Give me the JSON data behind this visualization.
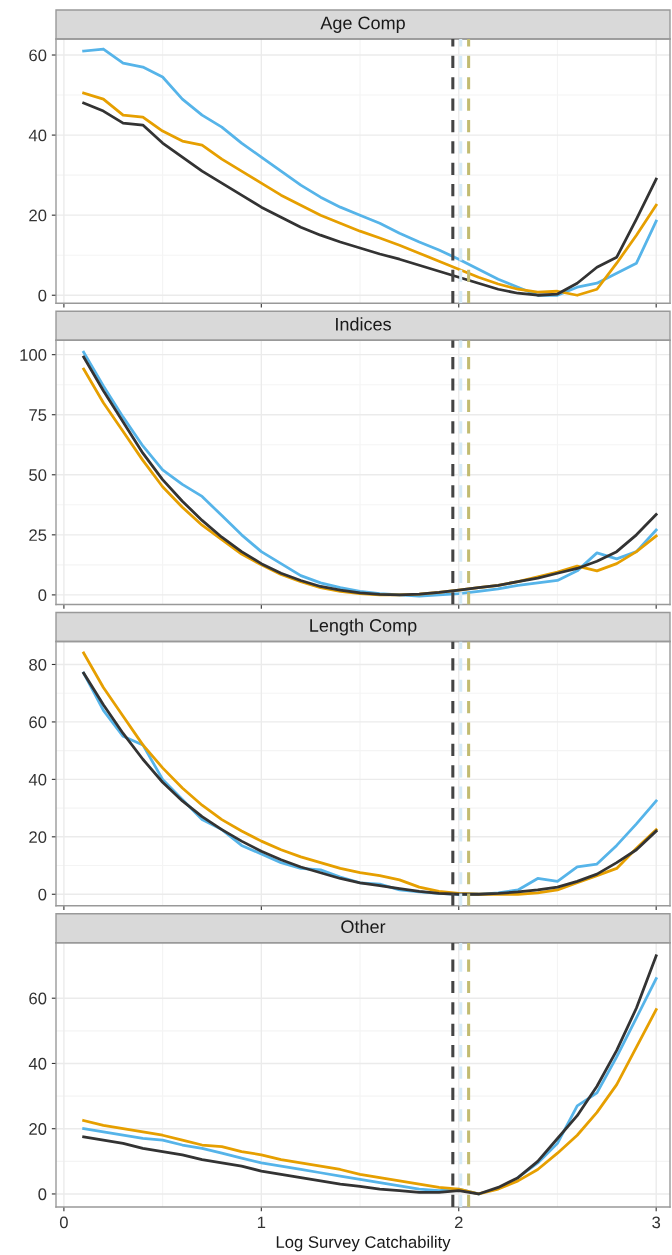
{
  "chart_data": [
    {
      "type": "line",
      "title": "Age Comp",
      "x": [
        0.1,
        0.2,
        0.3,
        0.4,
        0.5,
        0.6,
        0.7,
        0.8,
        0.9,
        1.0,
        1.1,
        1.2,
        1.3,
        1.4,
        1.5,
        1.6,
        1.7,
        1.8,
        1.9,
        2.0,
        2.1,
        2.2,
        2.3,
        2.4,
        2.5,
        2.6,
        2.7,
        2.8,
        2.9,
        3.0
      ],
      "series": [
        {
          "color": "#56b4e9",
          "values": [
            61,
            61.5,
            58,
            57,
            54.5,
            49,
            45,
            42,
            38,
            34.5,
            31,
            27.5,
            24.5,
            22,
            20,
            18,
            15.5,
            13.3,
            11.3,
            9,
            6.5,
            4,
            2,
            0,
            0,
            2,
            3,
            5.5,
            8,
            18.5
          ]
        },
        {
          "color": "#e69f00",
          "values": [
            50.5,
            49,
            45,
            44.5,
            41,
            38.5,
            37.5,
            34,
            31,
            28,
            25,
            22.5,
            20,
            18,
            16,
            14.3,
            12.5,
            10.5,
            8.5,
            6.5,
            4.5,
            2.8,
            1.5,
            0.8,
            1,
            0,
            1.5,
            8,
            15,
            22.5
          ]
        },
        {
          "color": "#333333",
          "values": [
            48,
            46,
            43,
            42.5,
            38,
            34.5,
            31,
            28,
            25,
            22,
            19.5,
            17,
            15,
            13.3,
            11.8,
            10.3,
            9,
            7.5,
            6,
            4.5,
            3,
            1.5,
            0.5,
            0,
            0.3,
            3,
            7,
            9.5,
            19,
            29
          ]
        }
      ],
      "xlim": [
        -0.04,
        3.07
      ],
      "xticks": [
        0,
        1,
        2,
        3
      ],
      "ylim": [
        -2,
        64
      ],
      "yticks": [
        0,
        20,
        40,
        60
      ],
      "tick_labels": "y",
      "grid": true,
      "line_style": "solid",
      "ref_lines": [
        {
          "axis": "x",
          "value": 1.97,
          "color": "#444444",
          "line_style": "dashed"
        },
        {
          "axis": "x",
          "value": 2.01,
          "color": "#d6eaf6",
          "line_style": "dashed"
        },
        {
          "axis": "x",
          "value": 2.05,
          "color": "#c2bb72",
          "line_style": "dashed"
        }
      ]
    },
    {
      "type": "line",
      "title": "Indices",
      "x": [
        0.1,
        0.2,
        0.3,
        0.4,
        0.5,
        0.6,
        0.7,
        0.8,
        0.9,
        1.0,
        1.1,
        1.2,
        1.3,
        1.4,
        1.5,
        1.6,
        1.7,
        1.8,
        1.9,
        2.0,
        2.1,
        2.2,
        2.3,
        2.4,
        2.5,
        2.6,
        2.7,
        2.8,
        2.9,
        3.0
      ],
      "series": [
        {
          "color": "#56b4e9",
          "values": [
            101,
            87,
            74,
            62,
            52,
            46,
            41,
            33,
            25,
            18,
            13,
            8,
            5,
            3,
            1.5,
            0.5,
            0,
            -0.5,
            0,
            0.5,
            1.5,
            2.5,
            4,
            5,
            6,
            10,
            17.5,
            15,
            18,
            27
          ]
        },
        {
          "color": "#e69f00",
          "values": [
            94,
            80,
            68,
            56,
            45,
            36.5,
            29,
            23,
            17,
            12.5,
            8.5,
            5.5,
            3,
            1.5,
            0.5,
            0,
            0,
            0.3,
            1,
            2,
            3,
            4,
            5.5,
            7.5,
            9.5,
            12,
            10,
            13,
            18,
            24.5
          ]
        },
        {
          "color": "#333333",
          "values": [
            99,
            85,
            72,
            59,
            48,
            39,
            31,
            24,
            18,
            13,
            9,
            6,
            3.5,
            2,
            0.8,
            0.2,
            0,
            0.3,
            1,
            2,
            3,
            4,
            5.5,
            7,
            9,
            11,
            14,
            18,
            25,
            33.5
          ]
        }
      ],
      "xlim": [
        -0.04,
        3.07
      ],
      "xticks": [
        0,
        1,
        2,
        3
      ],
      "ylim": [
        -4,
        106
      ],
      "yticks": [
        0,
        25,
        50,
        75,
        100
      ],
      "tick_labels": "y",
      "grid": true,
      "line_style": "solid",
      "ref_lines": [
        {
          "axis": "x",
          "value": 1.97,
          "color": "#444444",
          "line_style": "dashed"
        },
        {
          "axis": "x",
          "value": 2.01,
          "color": "#d6eaf6",
          "line_style": "dashed"
        },
        {
          "axis": "x",
          "value": 2.05,
          "color": "#c2bb72",
          "line_style": "dashed"
        }
      ]
    },
    {
      "type": "line",
      "title": "Length Comp",
      "x": [
        0.1,
        0.2,
        0.3,
        0.4,
        0.5,
        0.6,
        0.7,
        0.8,
        0.9,
        1.0,
        1.1,
        1.2,
        1.3,
        1.4,
        1.5,
        1.6,
        1.7,
        1.8,
        1.9,
        2.0,
        2.1,
        2.2,
        2.3,
        2.4,
        2.5,
        2.6,
        2.7,
        2.8,
        2.9,
        3.0
      ],
      "series": [
        {
          "color": "#56b4e9",
          "values": [
            77,
            64,
            55,
            52,
            40,
            33,
            26,
            22.5,
            17,
            14,
            11,
            9,
            8.5,
            6,
            4,
            3.5,
            1.5,
            0.8,
            0.3,
            0,
            0,
            0.5,
            1.5,
            5.5,
            4.5,
            9.5,
            10.5,
            17,
            24.5,
            32.5
          ]
        },
        {
          "color": "#e69f00",
          "values": [
            84,
            72,
            62,
            52,
            44,
            37,
            31,
            26,
            22,
            18.5,
            15.5,
            13,
            11,
            9,
            7.5,
            6.5,
            5,
            2.5,
            1,
            0.3,
            0,
            0,
            0,
            0.5,
            1.5,
            4,
            6.5,
            9,
            16,
            22.5
          ]
        },
        {
          "color": "#333333",
          "values": [
            77,
            66,
            56,
            47,
            39,
            32.5,
            27,
            22.5,
            18.5,
            15,
            12,
            9.5,
            7.5,
            5.5,
            4,
            3,
            2,
            1,
            0.3,
            0,
            0,
            0.3,
            0.8,
            1.5,
            2.5,
            4.5,
            7,
            11,
            15.5,
            22
          ]
        }
      ],
      "xlim": [
        -0.04,
        3.07
      ],
      "xticks": [
        0,
        1,
        2,
        3
      ],
      "ylim": [
        -4,
        88
      ],
      "yticks": [
        0,
        20,
        40,
        60,
        80
      ],
      "tick_labels": "y",
      "grid": true,
      "line_style": "solid",
      "ref_lines": [
        {
          "axis": "x",
          "value": 1.97,
          "color": "#444444",
          "line_style": "dashed"
        },
        {
          "axis": "x",
          "value": 2.01,
          "color": "#d6eaf6",
          "line_style": "dashed"
        },
        {
          "axis": "x",
          "value": 2.05,
          "color": "#c2bb72",
          "line_style": "dashed"
        }
      ]
    },
    {
      "type": "line",
      "title": "Other",
      "xlabel": "Log Survey Catchability",
      "x": [
        0.1,
        0.2,
        0.3,
        0.4,
        0.5,
        0.6,
        0.7,
        0.8,
        0.9,
        1.0,
        1.1,
        1.2,
        1.3,
        1.4,
        1.5,
        1.6,
        1.7,
        1.8,
        1.9,
        2.0,
        2.1,
        2.2,
        2.3,
        2.4,
        2.5,
        2.6,
        2.7,
        2.8,
        2.9,
        3.0
      ],
      "series": [
        {
          "color": "#56b4e9",
          "values": [
            20,
            19,
            18,
            17,
            16.5,
            15,
            14,
            12.5,
            11,
            9.5,
            8.5,
            7.5,
            6.5,
            5.5,
            4.5,
            3.5,
            2.5,
            1.5,
            1,
            1.5,
            0,
            null,
            5,
            9.5,
            15.5,
            27,
            31,
            42,
            54,
            66
          ]
        },
        {
          "color": "#e69f00",
          "values": [
            22.5,
            21,
            20,
            19,
            18,
            16.5,
            15,
            14.5,
            13,
            12,
            10.5,
            9.5,
            8.5,
            7.5,
            6,
            5,
            4,
            3,
            2,
            1.5,
            0,
            1.5,
            4,
            7.5,
            12.5,
            18,
            25,
            33.5,
            45,
            56.5
          ]
        },
        {
          "color": "#333333",
          "values": [
            17.5,
            16.5,
            15.5,
            14,
            13,
            12,
            10.5,
            9.5,
            8.5,
            7,
            6,
            5,
            4,
            3,
            2.3,
            1.5,
            1,
            0.5,
            0.5,
            1,
            0,
            2,
            5,
            10,
            17,
            24,
            33,
            44,
            57,
            73
          ]
        }
      ],
      "xlim": [
        -0.04,
        3.07
      ],
      "xticks": [
        0,
        1,
        2,
        3
      ],
      "ylim": [
        -4,
        77
      ],
      "yticks": [
        0,
        20,
        40,
        60
      ],
      "grid": true,
      "line_style": "solid",
      "ref_lines": [
        {
          "axis": "x",
          "value": 1.97,
          "color": "#444444",
          "line_style": "dashed"
        },
        {
          "axis": "x",
          "value": 2.01,
          "color": "#d6eaf6",
          "line_style": "dashed"
        },
        {
          "axis": "x",
          "value": 2.05,
          "color": "#c2bb72",
          "line_style": "dashed"
        }
      ]
    }
  ]
}
